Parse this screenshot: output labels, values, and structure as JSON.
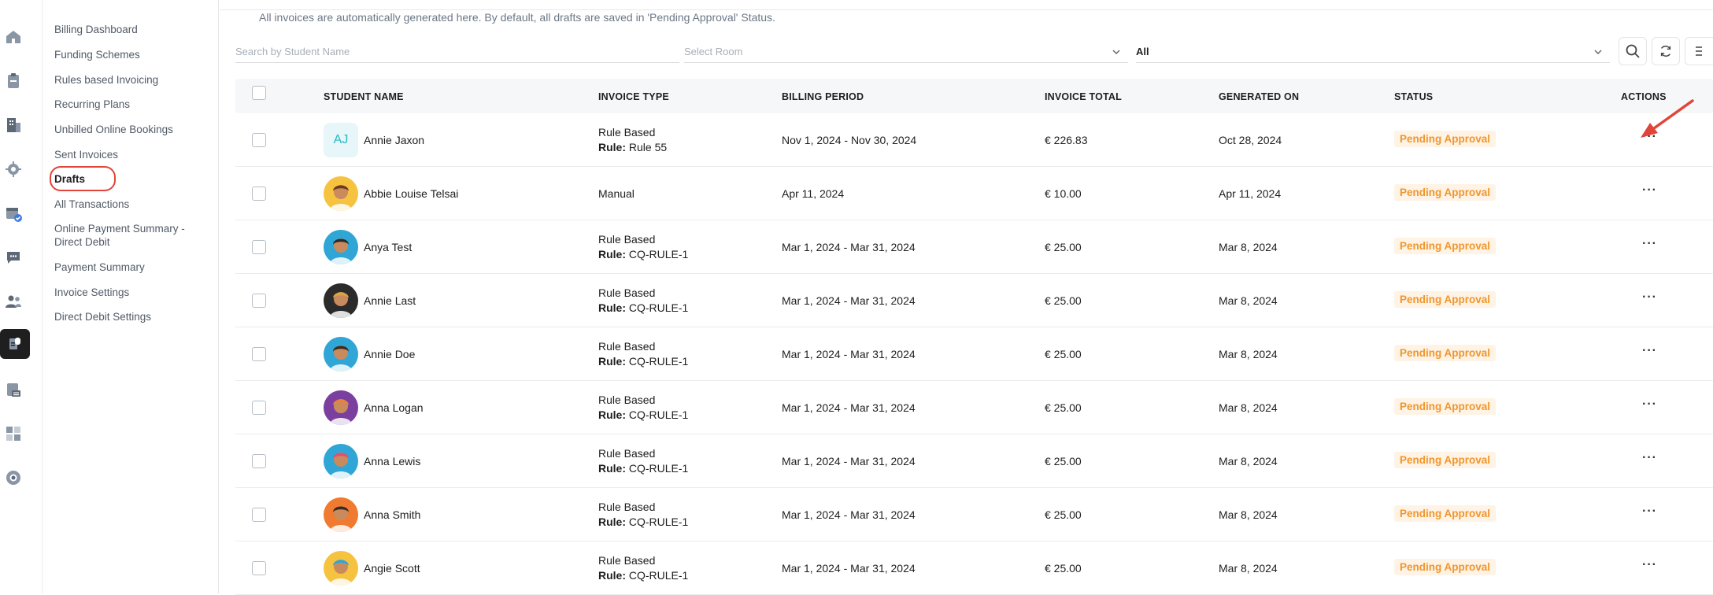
{
  "subnav": {
    "items": [
      {
        "label": "Billing Dashboard",
        "active": false
      },
      {
        "label": "Funding Schemes",
        "active": false
      },
      {
        "label": "Rules based Invoicing",
        "active": false
      },
      {
        "label": "Recurring Plans",
        "active": false
      },
      {
        "label": "Unbilled Online Bookings",
        "active": false
      },
      {
        "label": "Sent Invoices",
        "active": false
      },
      {
        "label": "Drafts",
        "active": true
      },
      {
        "label": "All Transactions",
        "active": false
      },
      {
        "label": "Online Payment Summary - Direct Debit",
        "active": false
      },
      {
        "label": "Payment Summary",
        "active": false
      },
      {
        "label": "Invoice Settings",
        "active": false
      },
      {
        "label": "Direct Debit Settings",
        "active": false
      }
    ]
  },
  "info_text": "All invoices are automatically generated here. By default, all drafts are saved in 'Pending Approval' Status.",
  "filters": {
    "search_placeholder": "Search by Student Name",
    "room_placeholder": "Select Room",
    "status_value": "All"
  },
  "table": {
    "headers": {
      "student_name": "STUDENT NAME",
      "invoice_type": "INVOICE TYPE",
      "billing_period": "BILLING PERIOD",
      "invoice_total": "INVOICE TOTAL",
      "generated_on": "GENERATED ON",
      "status": "STATUS",
      "actions": "ACTIONS"
    },
    "rule_prefix": "Rule:",
    "rows": [
      {
        "name": "Annie Jaxon",
        "initials": "AJ",
        "type": "Rule Based",
        "rule": "Rule 55",
        "period": "Nov 1, 2024 - Nov 30, 2024",
        "total": "€ 226.83",
        "generated": "Oct 28, 2024",
        "status": "Pending Approval"
      },
      {
        "name": "Abbie Louise Telsai",
        "initials": "",
        "type": "Manual",
        "rule": "",
        "period": "Apr 11, 2024",
        "total": "€ 10.00",
        "generated": "Apr 11, 2024",
        "status": "Pending Approval"
      },
      {
        "name": "Anya Test",
        "initials": "",
        "type": "Rule Based",
        "rule": "CQ-RULE-1",
        "period": "Mar 1, 2024 - Mar 31, 2024",
        "total": "€ 25.00",
        "generated": "Mar 8, 2024",
        "status": "Pending Approval"
      },
      {
        "name": "Annie Last",
        "initials": "",
        "type": "Rule Based",
        "rule": "CQ-RULE-1",
        "period": "Mar 1, 2024 - Mar 31, 2024",
        "total": "€ 25.00",
        "generated": "Mar 8, 2024",
        "status": "Pending Approval"
      },
      {
        "name": "Annie Doe",
        "initials": "",
        "type": "Rule Based",
        "rule": "CQ-RULE-1",
        "period": "Mar 1, 2024 - Mar 31, 2024",
        "total": "€ 25.00",
        "generated": "Mar 8, 2024",
        "status": "Pending Approval"
      },
      {
        "name": "Anna Logan",
        "initials": "",
        "type": "Rule Based",
        "rule": "CQ-RULE-1",
        "period": "Mar 1, 2024 - Mar 31, 2024",
        "total": "€ 25.00",
        "generated": "Mar 8, 2024",
        "status": "Pending Approval"
      },
      {
        "name": "Anna Lewis",
        "initials": "",
        "type": "Rule Based",
        "rule": "CQ-RULE-1",
        "period": "Mar 1, 2024 - Mar 31, 2024",
        "total": "€ 25.00",
        "generated": "Mar 8, 2024",
        "status": "Pending Approval"
      },
      {
        "name": "Anna Smith",
        "initials": "",
        "type": "Rule Based",
        "rule": "CQ-RULE-1",
        "period": "Mar 1, 2024 - Mar 31, 2024",
        "total": "€ 25.00",
        "generated": "Mar 8, 2024",
        "status": "Pending Approval"
      },
      {
        "name": "Angie Scott",
        "initials": "",
        "type": "Rule Based",
        "rule": "CQ-RULE-1",
        "period": "Mar 1, 2024 - Mar 31, 2024",
        "total": "€ 25.00",
        "generated": "Mar 8, 2024",
        "status": "Pending Approval"
      }
    ]
  },
  "colors": {
    "accent_status": "#f0962d",
    "highlight_ring": "#e0453a",
    "initials_text": "#28b8c8"
  },
  "icons": {
    "rail": [
      "home-icon",
      "clipboard-icon",
      "building-icon",
      "gear-icon",
      "calendar-check-icon",
      "chat-icon",
      "people-icon",
      "billing-icon",
      "checklist-icon",
      "dashboard-icon",
      "support-icon"
    ],
    "tools": [
      "search-icon",
      "refresh-icon"
    ]
  }
}
